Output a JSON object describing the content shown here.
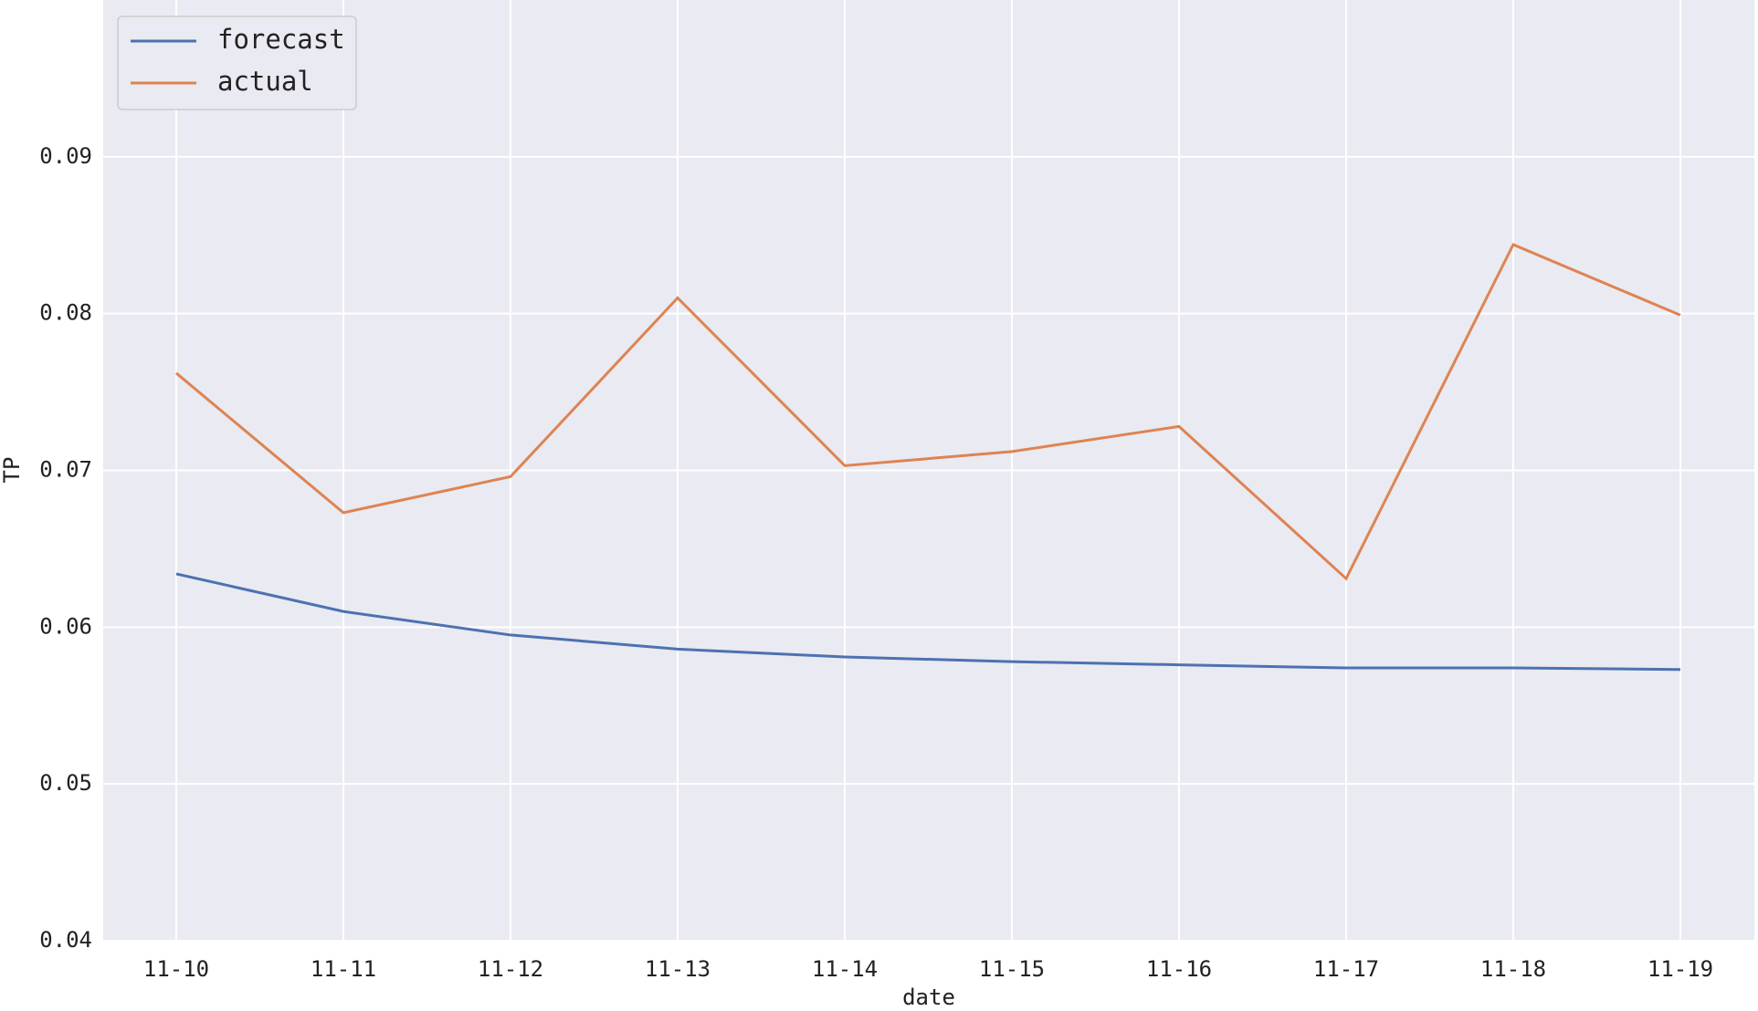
{
  "chart_data": {
    "type": "line",
    "categories": [
      "11-10",
      "11-11",
      "11-12",
      "11-13",
      "11-14",
      "11-15",
      "11-16",
      "11-17",
      "11-18",
      "11-19"
    ],
    "series": [
      {
        "name": "forecast",
        "color": "#4c72b0",
        "values": [
          0.0634,
          0.061,
          0.0595,
          0.0586,
          0.0581,
          0.0578,
          0.0576,
          0.0574,
          0.0574,
          0.0573
        ]
      },
      {
        "name": "actual",
        "color": "#dd8452",
        "values": [
          0.0762,
          0.0673,
          0.0696,
          0.081,
          0.0703,
          0.0712,
          0.0728,
          0.0631,
          0.0844,
          0.0799
        ]
      }
    ],
    "xlabel": "date",
    "ylabel": "TP",
    "ylim": [
      0.04,
      0.1
    ],
    "yticks": [
      0.04,
      0.05,
      0.06,
      0.07,
      0.08,
      0.09
    ],
    "grid": true,
    "legend": "upper left"
  }
}
